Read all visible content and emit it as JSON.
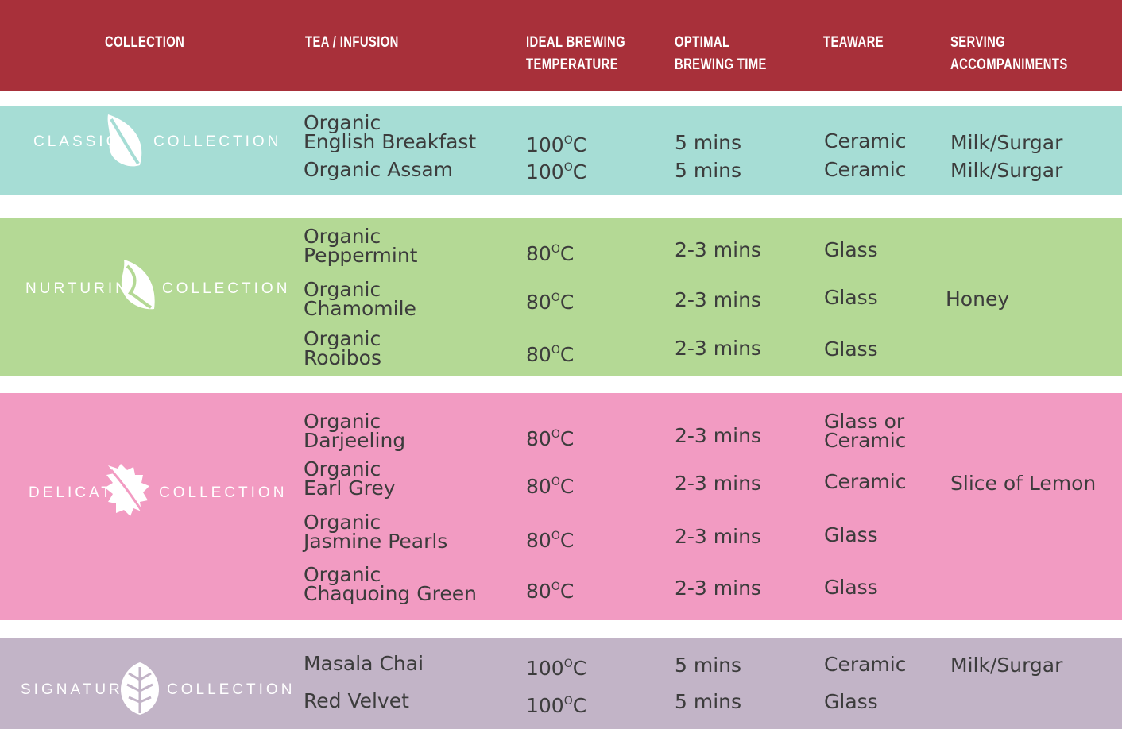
{
  "colors": {
    "header": "#a8303a",
    "classic": "#a6ddd5",
    "nurturing": "#b4d995",
    "delicate": "#f29bc2",
    "signature": "#c2b4c7",
    "text": "#3c3c3c"
  },
  "header": {
    "collection": "COLLECTION",
    "tea": "TEA / INFUSION",
    "temperature": "IDEAL BREWING\nTEMPERATURE",
    "time": "OPTIMAL\nBREWING TIME",
    "teaware": "TEAWARE",
    "serving": "SERVING\nACCOMPANIMENTS"
  },
  "collections": [
    {
      "left_word": "CLASSIC",
      "right_word": "COLLECTION",
      "icon": "leaf-icon",
      "teas": [
        {
          "name": "Organic\nEnglish Breakfast",
          "temp": "100",
          "unit": "C",
          "time": "5 mins",
          "teaware": "Ceramic",
          "serving": "Milk/Surgar"
        },
        {
          "name": "Organic Assam",
          "temp": "100",
          "unit": "C",
          "time": "5 mins",
          "teaware": "Ceramic",
          "serving": "Milk/Surgar"
        }
      ]
    },
    {
      "left_word": "NURTURING",
      "right_word": "COLLECTION",
      "icon": "curled-leaf-icon",
      "serving": "Honey",
      "teas": [
        {
          "name": "Organic\nPeppermint",
          "temp": "80",
          "unit": "C",
          "time": "2-3 mins",
          "teaware": "Glass"
        },
        {
          "name": "Organic\nChamomile",
          "temp": "80",
          "unit": "C",
          "time": "2-3 mins",
          "teaware": "Glass"
        },
        {
          "name": "Organic\nRooibos",
          "temp": "80",
          "unit": "C",
          "time": "2-3 mins",
          "teaware": "Glass"
        }
      ]
    },
    {
      "left_word": "DELICATE",
      "right_word": "COLLECTION",
      "icon": "serrated-leaf-icon",
      "serving": "Slice of Lemon",
      "teas": [
        {
          "name": "Organic\nDarjeeling",
          "temp": "80",
          "unit": "C",
          "time": "2-3 mins",
          "teaware": "Glass or\nCeramic"
        },
        {
          "name": "Organic\nEarl Grey",
          "temp": "80",
          "unit": "C",
          "time": "2-3 mins",
          "teaware": "Ceramic"
        },
        {
          "name": "Organic\nJasmine Pearls",
          "temp": "80",
          "unit": "C",
          "time": "2-3 mins",
          "teaware": "Glass"
        },
        {
          "name": "Organic\nChaquoing Green",
          "temp": "80",
          "unit": "C",
          "time": "2-3 mins",
          "teaware": "Glass"
        }
      ]
    },
    {
      "left_word": "SIGNATURE",
      "right_word": "COLLECTION",
      "icon": "mint-leaf-icon",
      "teas": [
        {
          "name": "Masala Chai",
          "temp": "100",
          "unit": "C",
          "time": "5 mins",
          "teaware": "Ceramic",
          "serving": "Milk/Surgar"
        },
        {
          "name": "Red Velvet",
          "temp": "100",
          "unit": "C",
          "time": "5 mins",
          "teaware": "Glass"
        }
      ]
    }
  ]
}
